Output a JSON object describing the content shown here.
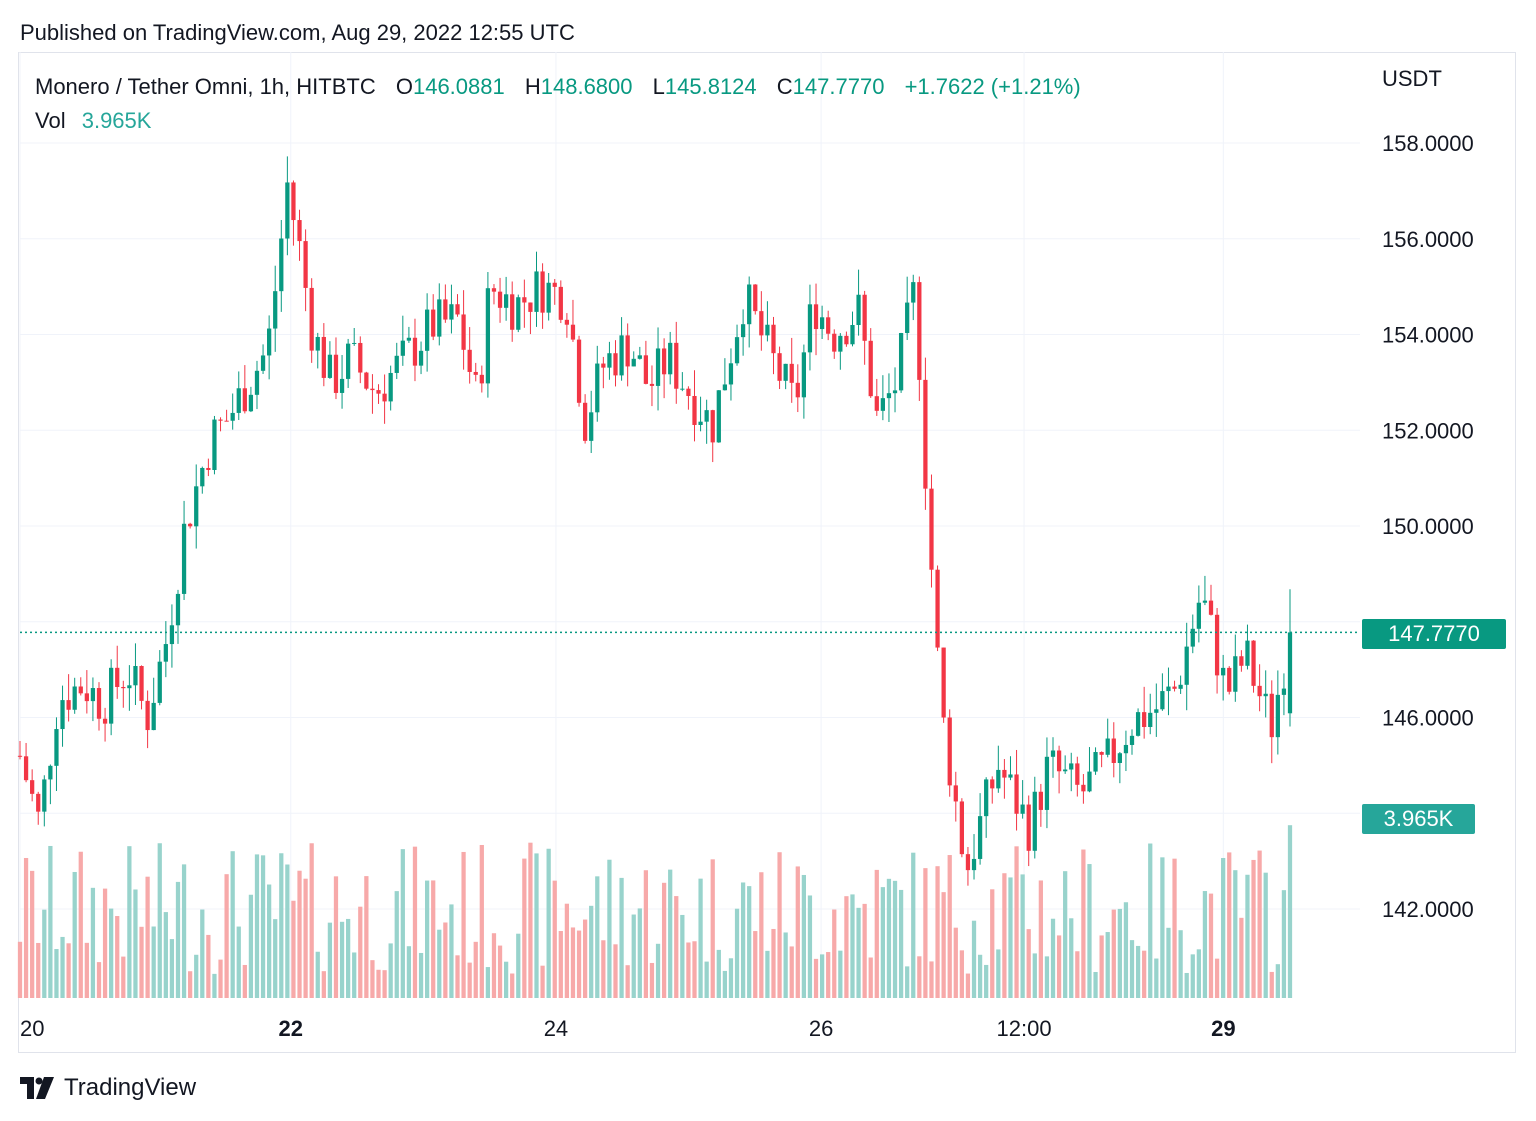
{
  "published": "Published on TradingView.com, Aug 29, 2022 12:55 UTC",
  "legend": {
    "symbol": "Monero / Tether Omni, 1h, HITBTC",
    "open_label": "O",
    "open": "146.0881",
    "high_label": "H",
    "high": "148.6800",
    "low_label": "L",
    "low": "145.8124",
    "close_label": "C",
    "close": "147.7770",
    "change": "+1.7622 (+1.21%)",
    "vol_label": "Vol",
    "vol": "3.965K"
  },
  "unit": "USDT",
  "last_price_tag": "147.7770",
  "volume_tag": "3.965K",
  "brand": "TradingView",
  "colors": {
    "up": "#089981",
    "down": "#f23645",
    "up_vol": "#98d3cc",
    "down_vol": "#f7a9a9",
    "grid": "#f0f3fa"
  },
  "chart_data": {
    "type": "candlestick",
    "interval": "1h",
    "y_ticks": [
      "142.0000",
      "146.0000",
      "150.0000",
      "152.0000",
      "154.0000",
      "156.0000",
      "158.0000"
    ],
    "x_ticks": [
      {
        "label": "20",
        "bold": false,
        "t": 0
      },
      {
        "label": "22",
        "bold": true,
        "t": 0.2132
      },
      {
        "label": "24",
        "bold": false,
        "t": 0.422
      },
      {
        "label": "26",
        "bold": false,
        "t": 0.6308
      },
      {
        "label": "12:00",
        "bold": false,
        "t": 0.7906
      },
      {
        "label": "29",
        "bold": true,
        "t": 0.9475
      }
    ],
    "anchors": [
      [
        0,
        145.2
      ],
      [
        0.015,
        143.8
      ],
      [
        0.03,
        146.4
      ],
      [
        0.05,
        146.7
      ],
      [
        0.065,
        146.3
      ],
      [
        0.085,
        147.0
      ],
      [
        0.1,
        146.0
      ],
      [
        0.115,
        147.6
      ],
      [
        0.13,
        150.0
      ],
      [
        0.15,
        151.8
      ],
      [
        0.165,
        152.3
      ],
      [
        0.18,
        153.0
      ],
      [
        0.195,
        153.7
      ],
      [
        0.205,
        155.8
      ],
      [
        0.21,
        157.2
      ],
      [
        0.22,
        155.8
      ],
      [
        0.23,
        154.1
      ],
      [
        0.245,
        153.0
      ],
      [
        0.26,
        153.5
      ],
      [
        0.28,
        152.8
      ],
      [
        0.3,
        153.4
      ],
      [
        0.325,
        154.2
      ],
      [
        0.345,
        154.3
      ],
      [
        0.36,
        152.6
      ],
      [
        0.37,
        155.0
      ],
      [
        0.39,
        154.6
      ],
      [
        0.41,
        155.0
      ],
      [
        0.43,
        154.8
      ],
      [
        0.445,
        152.2
      ],
      [
        0.46,
        153.4
      ],
      [
        0.48,
        153.8
      ],
      [
        0.495,
        152.9
      ],
      [
        0.51,
        153.5
      ],
      [
        0.53,
        152.7
      ],
      [
        0.545,
        152.1
      ],
      [
        0.57,
        154.8
      ],
      [
        0.59,
        153.6
      ],
      [
        0.61,
        152.5
      ],
      [
        0.625,
        154.7
      ],
      [
        0.64,
        154.0
      ],
      [
        0.66,
        154.5
      ],
      [
        0.675,
        152.2
      ],
      [
        0.69,
        153.0
      ],
      [
        0.705,
        155.0
      ],
      [
        0.715,
        150.2
      ],
      [
        0.725,
        146.2
      ],
      [
        0.745,
        142.8
      ],
      [
        0.77,
        145.0
      ],
      [
        0.795,
        143.7
      ],
      [
        0.81,
        145.0
      ],
      [
        0.835,
        144.4
      ],
      [
        0.855,
        145.0
      ],
      [
        0.875,
        145.9
      ],
      [
        0.895,
        146.2
      ],
      [
        0.91,
        146.6
      ],
      [
        0.93,
        148.6
      ],
      [
        0.95,
        146.5
      ],
      [
        0.965,
        147.3
      ],
      [
        0.985,
        145.8
      ],
      [
        1.0,
        147.78
      ]
    ],
    "count": 210,
    "last": {
      "open": 146.0881,
      "high": 148.68,
      "low": 145.8124,
      "close": 147.777,
      "volume": "3.965K"
    }
  }
}
